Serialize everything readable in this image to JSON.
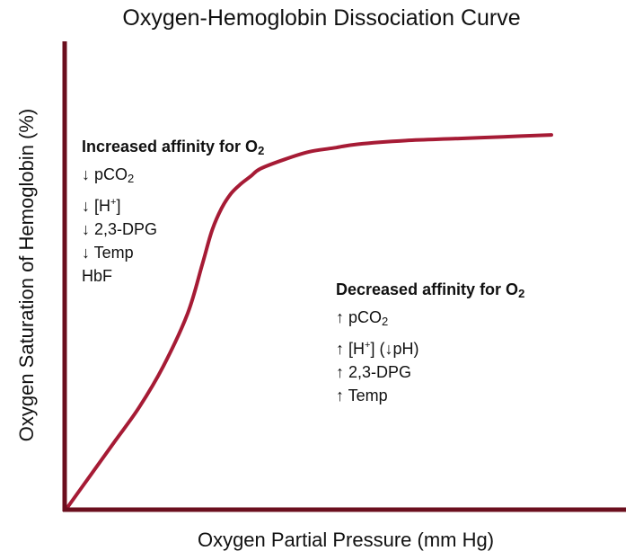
{
  "chart_data": {
    "type": "line",
    "title": "Oxygen-Hemoglobin Dissociation Curve",
    "xlabel": "Oxygen Partial Pressure (mm Hg)",
    "ylabel": "Oxygen Saturation of Hemoglobin (%)",
    "x_ticks_shown": false,
    "y_ticks_shown": false,
    "grid": false,
    "xlim": [
      0,
      100
    ],
    "ylim": [
      0,
      100
    ],
    "series": [
      {
        "color": "#a61b35",
        "x": [
          0,
          5,
          10,
          15,
          20,
          25,
          28,
          30,
          32,
          34,
          36,
          38,
          40,
          45,
          50,
          55,
          60,
          70,
          80,
          90,
          100
        ],
        "y": [
          0,
          9,
          18,
          27,
          38,
          52,
          65,
          74,
          80,
          84,
          86.5,
          88.5,
          90.5,
          93,
          95,
          96,
          97,
          98,
          98.5,
          99,
          99.5
        ]
      }
    ],
    "annotations": {
      "increased": {
        "head": "Increased affinity  for O",
        "head_sub": "2",
        "lines": [
          {
            "prefix": "↓ pCO",
            "sub": "2"
          },
          {
            "prefix": "↓ [H",
            "sup": "+",
            "suffix": "]"
          },
          {
            "prefix": "↓ 2,3-DPG"
          },
          {
            "prefix": "↓ Temp"
          },
          {
            "prefix": "HbF"
          }
        ]
      },
      "decreased": {
        "head": "Decreased affinity  for O",
        "head_sub": "2",
        "lines": [
          {
            "prefix": "↑ pCO",
            "sub": "2"
          },
          {
            "prefix": "↑ [H",
            "sup": "+",
            "suffix": "] (↓pH)"
          },
          {
            "prefix": "↑ 2,3-DPG"
          },
          {
            "prefix": "↑ Temp"
          }
        ]
      }
    },
    "colors": {
      "axis": "#6b0f1e",
      "curve": "#a61b35"
    }
  }
}
